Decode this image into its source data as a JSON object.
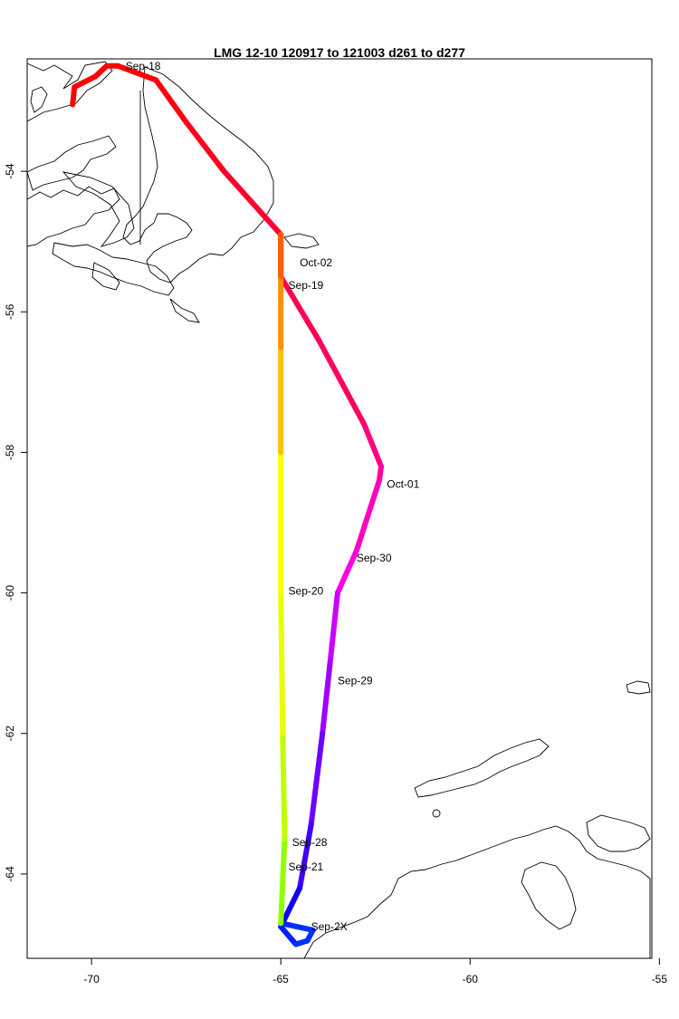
{
  "title": "LMG   12-10    120917 to 121003    d261 to d277",
  "axes": {
    "x_ticks": [
      -70,
      -65,
      -60,
      -55
    ],
    "y_ticks": [
      -54,
      -56,
      -58,
      -60,
      -62,
      -64
    ],
    "xlim": [
      -71.7,
      -55.2
    ],
    "ylim": [
      -65.2,
      -52.4
    ]
  },
  "chart_data": {
    "type": "map",
    "track": [
      {
        "lon": -70.5,
        "lat": -53.05,
        "color": "#ff0000"
      },
      {
        "lon": -70.45,
        "lat": -52.8,
        "color": "#ff0000"
      },
      {
        "lon": -69.9,
        "lat": -52.65,
        "color": "#ff0000"
      },
      {
        "lon": -69.6,
        "lat": -52.5,
        "color": "#ff0000"
      },
      {
        "lon": -69.3,
        "lat": -52.5,
        "color": "#ff0000"
      },
      {
        "lon": -68.8,
        "lat": -52.6,
        "color": "#ff0000"
      },
      {
        "lon": -68.3,
        "lat": -52.7,
        "color": "#ff0010"
      },
      {
        "lon": -67.5,
        "lat": -53.3,
        "color": "#ff0020"
      },
      {
        "lon": -66.5,
        "lat": -54.0,
        "color": "#ff0030"
      },
      {
        "lon": -65.0,
        "lat": -54.9,
        "color": "#ff0040"
      },
      {
        "lon": -65.0,
        "lat": -55.5,
        "color": "#ff0050"
      },
      {
        "lon": -64.0,
        "lat": -56.4,
        "color": "#ff0060"
      },
      {
        "lon": -62.8,
        "lat": -57.6,
        "color": "#ff0080"
      },
      {
        "lon": -62.35,
        "lat": -58.2,
        "color": "#ff00a0"
      },
      {
        "lon": -62.4,
        "lat": -58.4,
        "color": "#ff00c0"
      },
      {
        "lon": -63.0,
        "lat": -59.4,
        "color": "#ff00e0"
      },
      {
        "lon": -63.5,
        "lat": -60.0,
        "color": "#cc00ff"
      },
      {
        "lon": -63.7,
        "lat": -61.0,
        "color": "#a000ff"
      },
      {
        "lon": -63.9,
        "lat": -62.0,
        "color": "#7000ff"
      },
      {
        "lon": -64.2,
        "lat": -63.3,
        "color": "#4000ff"
      },
      {
        "lon": -64.5,
        "lat": -64.2,
        "color": "#1000ff"
      },
      {
        "lon": -65.0,
        "lat": -64.75,
        "color": "#0020ff"
      },
      {
        "lon": -64.6,
        "lat": -65.0,
        "color": "#0030ff"
      },
      {
        "lon": -64.3,
        "lat": -64.95,
        "color": "#0030ff"
      },
      {
        "lon": -64.15,
        "lat": -64.8,
        "color": "#0030ff"
      },
      {
        "lon": -65.0,
        "lat": -64.7,
        "color": "#90ff00"
      },
      {
        "lon": -64.9,
        "lat": -63.5,
        "color": "#c0ff00"
      },
      {
        "lon": -64.95,
        "lat": -62.0,
        "color": "#e8ff00"
      },
      {
        "lon": -65.0,
        "lat": -60.0,
        "color": "#ffff00"
      },
      {
        "lon": -65.0,
        "lat": -58.0,
        "color": "#ffc000"
      },
      {
        "lon": -65.0,
        "lat": -56.5,
        "color": "#ff9000"
      },
      {
        "lon": -65.0,
        "lat": -55.5,
        "color": "#ff6000"
      },
      {
        "lon": -65.0,
        "lat": -54.9,
        "color": "#ff4000"
      }
    ],
    "date_labels": [
      {
        "text": "Sep-18",
        "lon": -69.1,
        "lat": -52.5
      },
      {
        "text": "Oct-02",
        "lon": -64.5,
        "lat": -55.3
      },
      {
        "text": "Sep-19",
        "lon": -64.8,
        "lat": -55.62
      },
      {
        "text": "Oct-01",
        "lon": -62.2,
        "lat": -58.45
      },
      {
        "text": "Sep-30",
        "lon": -63.0,
        "lat": -59.5
      },
      {
        "text": "Sep-20",
        "lon": -64.8,
        "lat": -59.97
      },
      {
        "text": "Sep-29",
        "lon": -63.5,
        "lat": -61.25
      },
      {
        "text": "Sep-28",
        "lon": -64.7,
        "lat": -63.55
      },
      {
        "text": "Sep-21",
        "lon": -64.8,
        "lat": -63.9
      },
      {
        "text": "Sep-2X",
        "lon": -64.2,
        "lat": -64.75
      }
    ]
  }
}
